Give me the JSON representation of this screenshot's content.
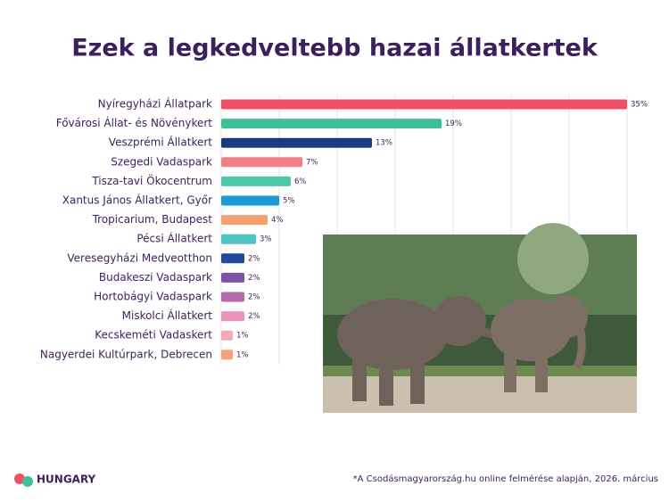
{
  "chart_data": {
    "type": "bar",
    "orientation": "horizontal",
    "title": "Ezek a legkedveltebb hazai állatkertek",
    "categories": [
      "Nyíregyházi Állatpark",
      "Fővárosi Állat- és Növénykert",
      "Veszprémi Állatkert",
      "Szegedi Vadaspark",
      "Tisza-tavi Ökocentrum",
      "Xantus János Állatkert, Győr",
      "Tropicarium, Budapest",
      "Pécsi Állatkert",
      "Veresegyházi Medveotthon",
      "Budakeszi Vadaspark",
      "Hortobágyi Vadaspark",
      "Miskolci Állatkert",
      "Kecskeméti Vadaskert",
      "Nagyerdei Kultúrpark, Debrecen"
    ],
    "values": [
      35,
      19,
      13,
      7,
      6,
      5,
      4,
      3,
      2,
      2,
      2,
      2,
      1,
      1
    ],
    "value_labels": [
      "35%",
      "19%",
      "13%",
      "7%",
      "6%",
      "5%",
      "4%",
      "3%",
      "2%",
      "2%",
      "2%",
      "2%",
      "1%",
      "1%"
    ],
    "colors": [
      "#ef5068",
      "#3fbf99",
      "#1c3a7f",
      "#f27f85",
      "#4cc7a9",
      "#1a9ad6",
      "#f6a070",
      "#4cc4c0",
      "#1f4a9c",
      "#7b52a8",
      "#b36aa8",
      "#e994b8",
      "#f7a8b0",
      "#f7a07a"
    ],
    "xlim": [
      0,
      35
    ],
    "xticks": [
      0,
      5,
      10,
      15,
      20,
      25,
      30,
      35
    ],
    "grid": true
  },
  "footer": {
    "logo": "HUNGARY",
    "note": "*A Csodásmagyarország.hu online felmérése alapján, 2026. március"
  }
}
